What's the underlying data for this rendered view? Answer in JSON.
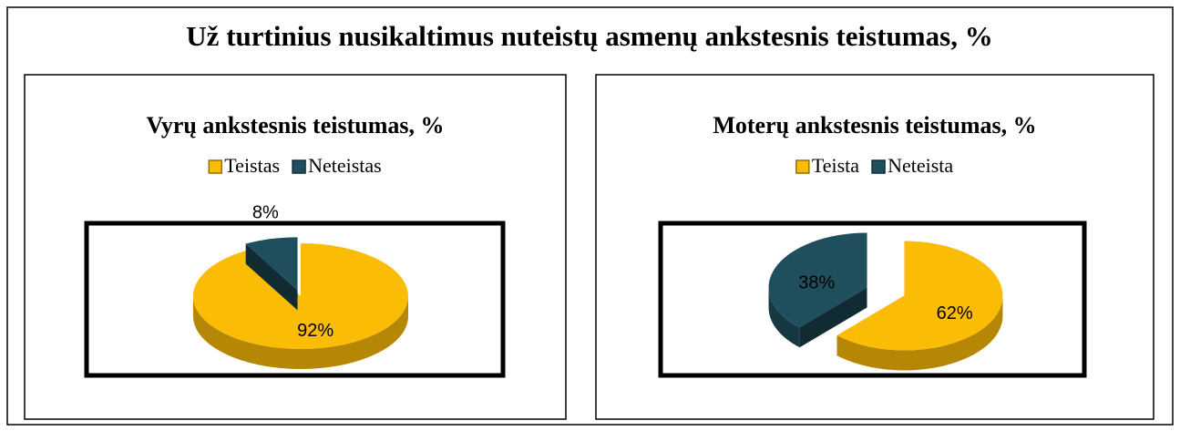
{
  "title": "Už turtinius nusikaltimus nuteistų asmenų ankstesnis teistumas, %",
  "chart_data": [
    {
      "type": "pie",
      "title": "Vyrų ankstesnis teistumas, %",
      "categories": [
        "Teistas",
        "Neteistas"
      ],
      "values": [
        92,
        8
      ],
      "value_labels": [
        "92%",
        "8%"
      ],
      "colors": [
        "#fbbc05",
        "#1f4e5c"
      ]
    },
    {
      "type": "pie",
      "title": "Moterų ankstesnis teistumas, %",
      "categories": [
        "Teista",
        "Neteista"
      ],
      "values": [
        62,
        38
      ],
      "value_labels": [
        "62%",
        "38%"
      ],
      "colors": [
        "#fbbc05",
        "#1f4e5c"
      ]
    }
  ]
}
